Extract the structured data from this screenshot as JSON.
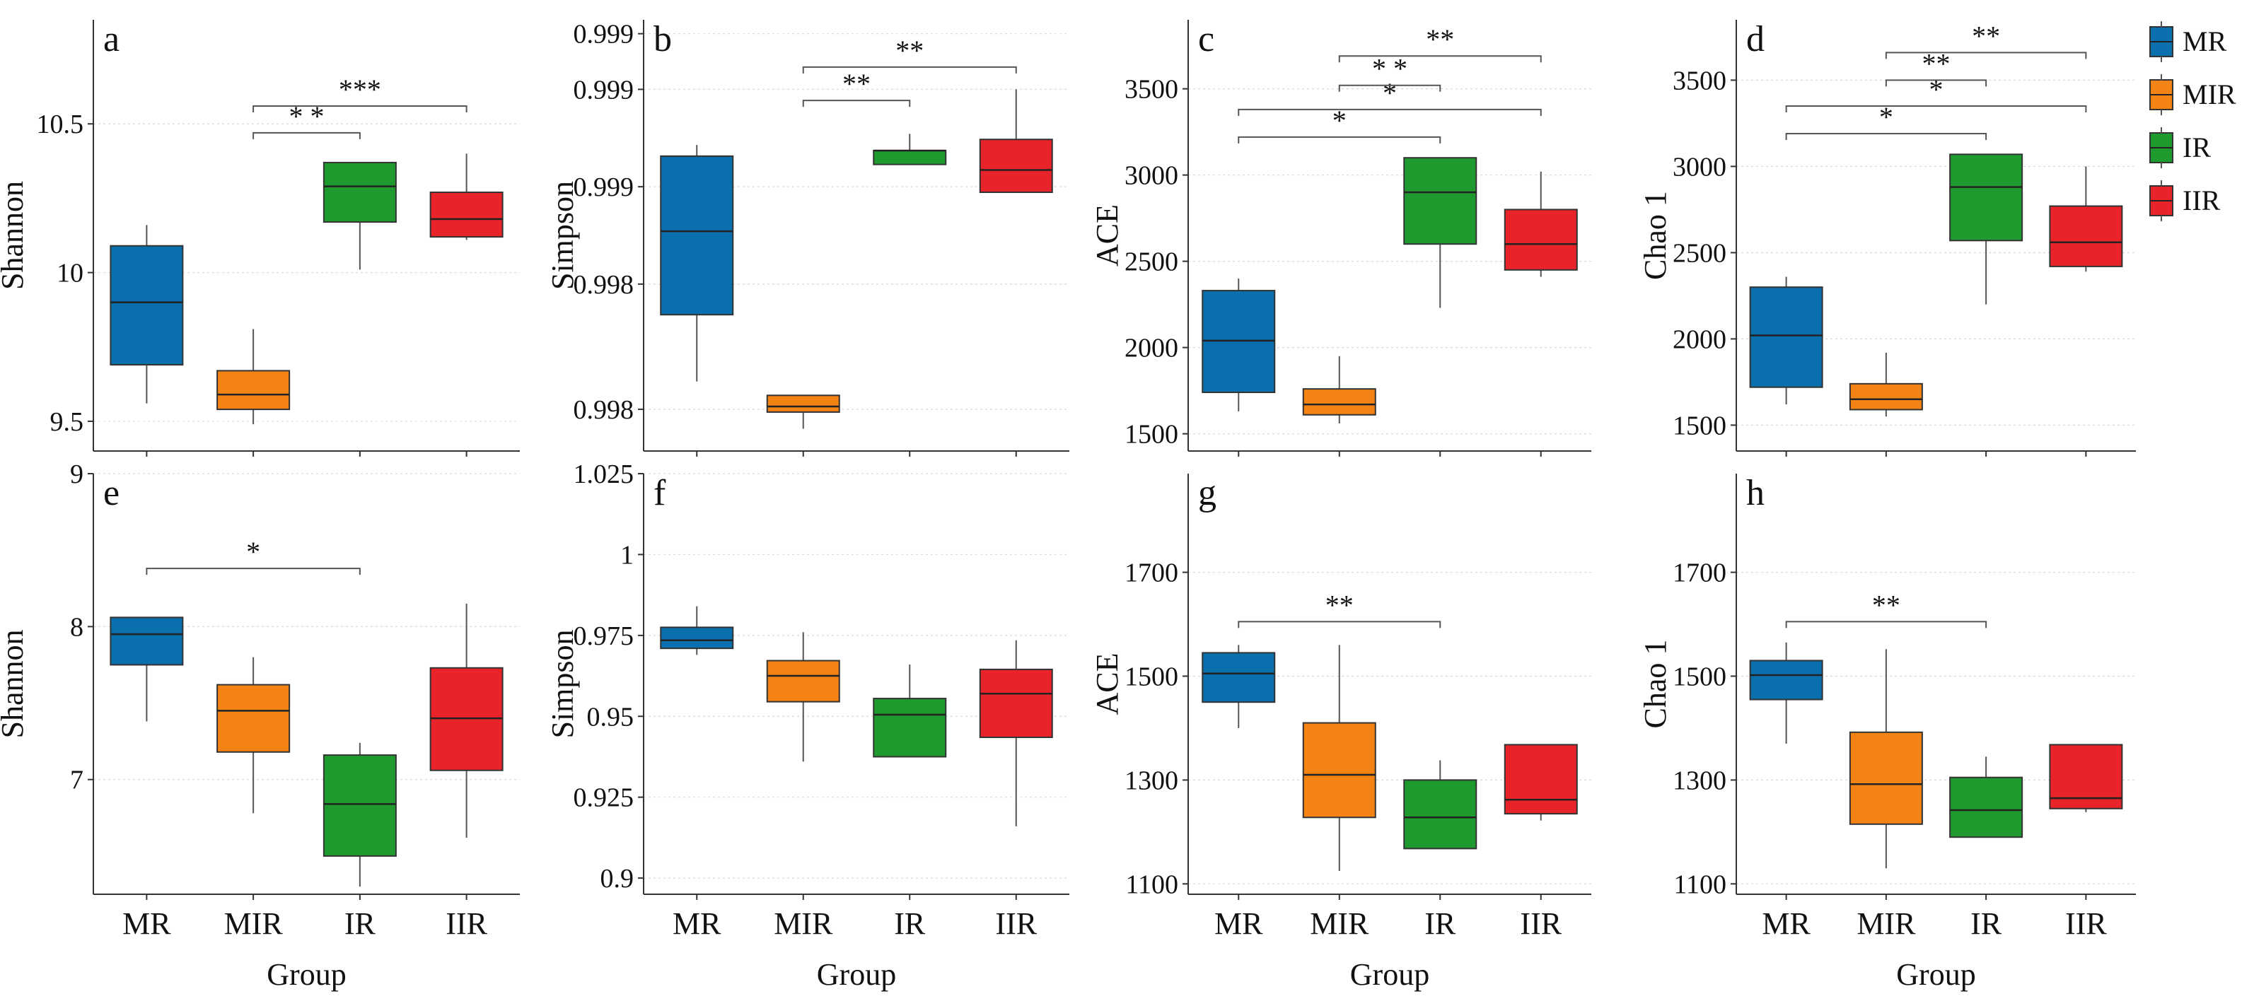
{
  "chart_data": {
    "type": "boxplot",
    "categories": [
      "MR",
      "MIR",
      "IR",
      "IIR"
    ],
    "colors": {
      "MR": "#0a6fad",
      "MIR": "#f58314",
      "IR": "#1e9a2f",
      "IIR": "#e8232a"
    },
    "legend": {
      "position": "top-right",
      "items": [
        "MR",
        "MIR",
        "IR",
        "IIR"
      ]
    },
    "xlabel": "Group",
    "panels": [
      {
        "id": "a",
        "ylabel": "Shannon",
        "ylim": [
          9.4,
          10.85
        ],
        "yticks": [
          9.5,
          10,
          10.5
        ],
        "ytick_labels": [
          "9.5",
          "10",
          "10.5"
        ],
        "boxes": [
          {
            "group": "MR",
            "min": 9.56,
            "q1": 9.69,
            "median": 9.9,
            "q3": 10.09,
            "max": 10.16
          },
          {
            "group": "MIR",
            "min": 9.49,
            "q1": 9.54,
            "median": 9.59,
            "q3": 9.67,
            "max": 9.81
          },
          {
            "group": "IR",
            "min": 10.01,
            "q1": 10.17,
            "median": 10.29,
            "q3": 10.37,
            "max": 10.37
          },
          {
            "group": "IIR",
            "min": 10.11,
            "q1": 10.12,
            "median": 10.18,
            "q3": 10.27,
            "max": 10.4
          }
        ],
        "significance": [
          {
            "from": "MIR",
            "to": "IR",
            "label": "* *",
            "y": 10.47
          },
          {
            "from": "MIR",
            "to": "IIR",
            "label": "***",
            "y": 10.56
          }
        ]
      },
      {
        "id": "b",
        "ylabel": "Simpson",
        "ylim": [
          0.9977,
          0.99925
        ],
        "yticks": [
          0.99785,
          0.9983,
          0.99865,
          0.999,
          0.9992
        ],
        "ytick_labels": [
          "0.998",
          "0.998",
          "0.999",
          "0.999",
          "0.999"
        ],
        "boxes": [
          {
            "group": "MR",
            "min": 0.99795,
            "q1": 0.99819,
            "median": 0.99849,
            "q3": 0.99876,
            "max": 0.9988
          },
          {
            "group": "MIR",
            "min": 0.99778,
            "q1": 0.99784,
            "median": 0.99786,
            "q3": 0.9979,
            "max": 0.9979
          },
          {
            "group": "IR",
            "min": 0.99873,
            "q1": 0.99873,
            "median": 0.99878,
            "q3": 0.99878,
            "max": 0.99884
          },
          {
            "group": "IIR",
            "min": 0.99863,
            "q1": 0.99863,
            "median": 0.99871,
            "q3": 0.99882,
            "max": 0.999
          }
        ],
        "significance": [
          {
            "from": "MIR",
            "to": "IR",
            "label": "**",
            "y": 0.99896
          },
          {
            "from": "MIR",
            "to": "IIR",
            "label": "**",
            "y": 0.99908
          }
        ]
      },
      {
        "id": "c",
        "ylabel": "ACE",
        "ylim": [
          1400,
          3900
        ],
        "yticks": [
          1500,
          2000,
          2500,
          3000,
          3500
        ],
        "ytick_labels": [
          "1500",
          "2000",
          "2500",
          "3000",
          "3500"
        ],
        "boxes": [
          {
            "group": "MR",
            "min": 1630,
            "q1": 1740,
            "median": 2040,
            "q3": 2330,
            "max": 2400
          },
          {
            "group": "MIR",
            "min": 1560,
            "q1": 1610,
            "median": 1670,
            "q3": 1760,
            "max": 1950
          },
          {
            "group": "IR",
            "min": 2230,
            "q1": 2600,
            "median": 2900,
            "q3": 3100,
            "max": 3100
          },
          {
            "group": "IIR",
            "min": 2410,
            "q1": 2450,
            "median": 2600,
            "q3": 2800,
            "max": 3020
          }
        ],
        "significance": [
          {
            "from": "MR",
            "to": "IR",
            "label": "*",
            "y": 3220
          },
          {
            "from": "MR",
            "to": "IIR",
            "label": "*",
            "y": 3380
          },
          {
            "from": "MIR",
            "to": "IR",
            "label": "* *",
            "y": 3520
          },
          {
            "from": "MIR",
            "to": "IIR",
            "label": "**",
            "y": 3690
          }
        ]
      },
      {
        "id": "d",
        "ylabel": "Chao 1",
        "ylim": [
          1350,
          3850
        ],
        "yticks": [
          1500,
          2000,
          2500,
          3000,
          3500
        ],
        "ytick_labels": [
          "1500",
          "2000",
          "2500",
          "3000",
          "3500"
        ],
        "boxes": [
          {
            "group": "MR",
            "min": 1620,
            "q1": 1720,
            "median": 2020,
            "q3": 2300,
            "max": 2360
          },
          {
            "group": "MIR",
            "min": 1550,
            "q1": 1590,
            "median": 1650,
            "q3": 1740,
            "max": 1920
          },
          {
            "group": "IR",
            "min": 2200,
            "q1": 2570,
            "median": 2880,
            "q3": 3070,
            "max": 3070
          },
          {
            "group": "IIR",
            "min": 2390,
            "q1": 2420,
            "median": 2560,
            "q3": 2770,
            "max": 3000
          }
        ],
        "significance": [
          {
            "from": "MR",
            "to": "IR",
            "label": "*",
            "y": 3190
          },
          {
            "from": "MR",
            "to": "IIR",
            "label": "*",
            "y": 3350
          },
          {
            "from": "MIR",
            "to": "IR",
            "label": "**",
            "y": 3500
          },
          {
            "from": "MIR",
            "to": "IIR",
            "label": "**",
            "y": 3660
          }
        ]
      },
      {
        "id": "e",
        "ylabel": "Shannon",
        "ylim": [
          6.25,
          9.0
        ],
        "yticks": [
          7,
          8,
          9
        ],
        "ytick_labels": [
          "7",
          "8",
          "9"
        ],
        "boxes": [
          {
            "group": "MR",
            "min": 7.38,
            "q1": 7.75,
            "median": 7.95,
            "q3": 8.06,
            "max": 8.06
          },
          {
            "group": "MIR",
            "min": 6.78,
            "q1": 7.18,
            "median": 7.45,
            "q3": 7.62,
            "max": 7.8
          },
          {
            "group": "IR",
            "min": 6.3,
            "q1": 6.5,
            "median": 6.84,
            "q3": 7.16,
            "max": 7.24
          },
          {
            "group": "IIR",
            "min": 6.62,
            "q1": 7.06,
            "median": 7.4,
            "q3": 7.73,
            "max": 8.15
          }
        ],
        "significance": [
          {
            "from": "MR",
            "to": "IR",
            "label": "*",
            "y": 8.38
          }
        ]
      },
      {
        "id": "f",
        "ylabel": "Simpson",
        "ylim": [
          0.895,
          1.025
        ],
        "yticks": [
          0.9,
          0.925,
          0.95,
          0.975,
          1,
          1.025
        ],
        "ytick_labels": [
          "0.9",
          "0.925",
          "0.95",
          "0.975",
          "1",
          "1.025"
        ],
        "boxes": [
          {
            "group": "MR",
            "min": 0.969,
            "q1": 0.971,
            "median": 0.9735,
            "q3": 0.9775,
            "max": 0.984
          },
          {
            "group": "MIR",
            "min": 0.936,
            "q1": 0.9545,
            "median": 0.9625,
            "q3": 0.9672,
            "max": 0.976
          },
          {
            "group": "IR",
            "min": 0.9375,
            "q1": 0.9375,
            "median": 0.9505,
            "q3": 0.9555,
            "max": 0.966
          },
          {
            "group": "IIR",
            "min": 0.916,
            "q1": 0.9435,
            "median": 0.957,
            "q3": 0.9645,
            "max": 0.9735
          }
        ],
        "significance": []
      },
      {
        "id": "g",
        "ylabel": "ACE",
        "ylim": [
          1080,
          1890
        ],
        "yticks": [
          1100,
          1300,
          1500,
          1700
        ],
        "ytick_labels": [
          "1100",
          "1300",
          "1500",
          "1700"
        ],
        "boxes": [
          {
            "group": "MR",
            "min": 1400,
            "q1": 1450,
            "median": 1505,
            "q3": 1545,
            "max": 1560
          },
          {
            "group": "MIR",
            "min": 1125,
            "q1": 1228,
            "median": 1310,
            "q3": 1410,
            "max": 1560
          },
          {
            "group": "IR",
            "min": 1168,
            "q1": 1168,
            "median": 1228,
            "q3": 1300,
            "max": 1338
          },
          {
            "group": "IIR",
            "min": 1222,
            "q1": 1235,
            "median": 1262,
            "q3": 1368,
            "max": 1368
          }
        ],
        "significance": [
          {
            "from": "MR",
            "to": "IR",
            "label": "**",
            "y": 1605
          }
        ]
      },
      {
        "id": "h",
        "ylabel": "Chao 1",
        "ylim": [
          1080,
          1890
        ],
        "yticks": [
          1100,
          1300,
          1500,
          1700
        ],
        "ytick_labels": [
          "1100",
          "1300",
          "1500",
          "1700"
        ],
        "boxes": [
          {
            "group": "MR",
            "min": 1370,
            "q1": 1455,
            "median": 1502,
            "q3": 1530,
            "max": 1565
          },
          {
            "group": "MIR",
            "min": 1130,
            "q1": 1215,
            "median": 1292,
            "q3": 1392,
            "max": 1552
          },
          {
            "group": "IR",
            "min": 1190,
            "q1": 1190,
            "median": 1242,
            "q3": 1305,
            "max": 1345
          },
          {
            "group": "IIR",
            "min": 1238,
            "q1": 1245,
            "median": 1265,
            "q3": 1368,
            "max": 1368
          }
        ],
        "significance": [
          {
            "from": "MR",
            "to": "IR",
            "label": "**",
            "y": 1605
          }
        ]
      }
    ]
  }
}
